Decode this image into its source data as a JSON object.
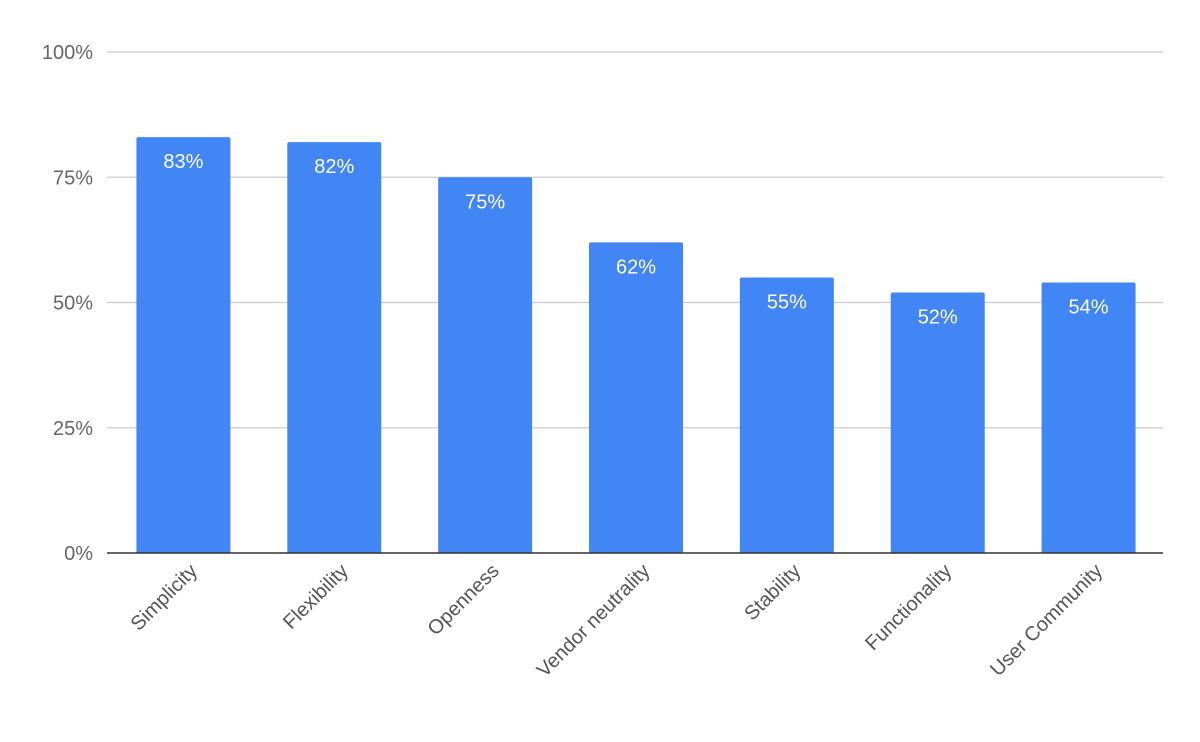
{
  "chart_data": {
    "type": "bar",
    "title": "",
    "xlabel": "",
    "ylabel": "",
    "categories": [
      "Simplicity",
      "Flexibility",
      "Openness",
      "Vendor neutrality",
      "Stability",
      "Functionality",
      "User Community"
    ],
    "values": [
      83,
      82,
      75,
      62,
      55,
      52,
      54
    ],
    "data_labels": [
      "83%",
      "82%",
      "75%",
      "62%",
      "55%",
      "52%",
      "54%"
    ],
    "ylim": [
      0,
      100
    ],
    "y_ticks": [
      0,
      25,
      50,
      75,
      100
    ],
    "y_tick_labels": [
      "0%",
      "25%",
      "50%",
      "75%",
      "100%"
    ],
    "grid": true,
    "legend": "none",
    "bar_color": "#4285f4"
  }
}
